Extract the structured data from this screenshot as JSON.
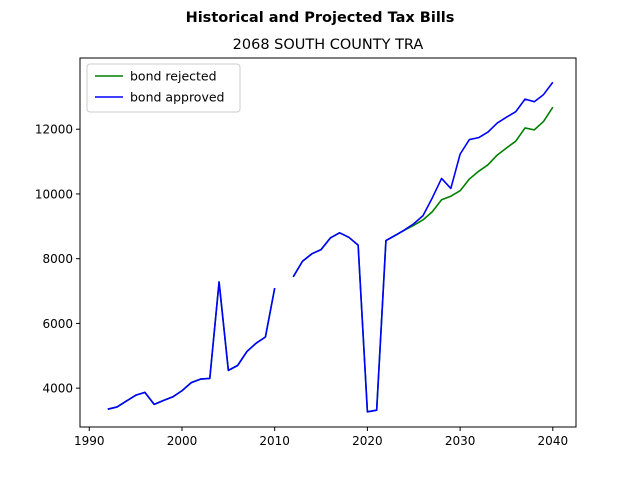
{
  "chart_data": {
    "type": "line",
    "suptitle": "Historical and Projected Tax Bills",
    "title": "2068 SOUTH COUNTY TRA",
    "xlabel": "",
    "ylabel": "",
    "xlim": [
      1989,
      2042.5
    ],
    "ylim": [
      2800,
      14200
    ],
    "xticks": [
      1990,
      2000,
      2010,
      2020,
      2030,
      2040
    ],
    "yticks": [
      4000,
      6000,
      8000,
      10000,
      12000
    ],
    "grid": false,
    "legend_position": "upper-left",
    "series": [
      {
        "name": "bond rejected",
        "color": "#008000",
        "points": [
          [
            1992,
            3350
          ],
          [
            1993,
            3420
          ],
          [
            1994,
            3600
          ],
          [
            1995,
            3780
          ],
          [
            1996,
            3870
          ],
          [
            1997,
            3500
          ],
          [
            1998,
            3620
          ],
          [
            1999,
            3730
          ],
          [
            2000,
            3920
          ],
          [
            2001,
            4170
          ],
          [
            2002,
            4280
          ],
          [
            2003,
            4300
          ],
          [
            2004,
            7280
          ],
          [
            2005,
            4550
          ],
          [
            2006,
            4700
          ],
          [
            2007,
            5130
          ],
          [
            2008,
            5390
          ],
          [
            2009,
            5580
          ],
          [
            2010,
            7090
          ],
          [
            2011,
            null
          ],
          [
            2012,
            7440
          ],
          [
            2013,
            7920
          ],
          [
            2014,
            8150
          ],
          [
            2015,
            8280
          ],
          [
            2016,
            8640
          ],
          [
            2017,
            8800
          ],
          [
            2018,
            8660
          ],
          [
            2019,
            8420
          ],
          [
            2020,
            3270
          ],
          [
            2021,
            3320
          ],
          [
            2022,
            8560
          ],
          [
            2023,
            8720
          ],
          [
            2024,
            8880
          ],
          [
            2025,
            9030
          ],
          [
            2026,
            9200
          ],
          [
            2027,
            9450
          ],
          [
            2028,
            9820
          ],
          [
            2029,
            9930
          ],
          [
            2030,
            10100
          ],
          [
            2031,
            10460
          ],
          [
            2032,
            10700
          ],
          [
            2033,
            10900
          ],
          [
            2034,
            11200
          ],
          [
            2035,
            11420
          ],
          [
            2036,
            11630
          ],
          [
            2037,
            12040
          ],
          [
            2038,
            11980
          ],
          [
            2039,
            12240
          ],
          [
            2040,
            12680
          ]
        ]
      },
      {
        "name": "bond approved",
        "color": "#0000ff",
        "points": [
          [
            1992,
            3350
          ],
          [
            1993,
            3420
          ],
          [
            1994,
            3600
          ],
          [
            1995,
            3780
          ],
          [
            1996,
            3870
          ],
          [
            1997,
            3500
          ],
          [
            1998,
            3620
          ],
          [
            1999,
            3730
          ],
          [
            2000,
            3920
          ],
          [
            2001,
            4170
          ],
          [
            2002,
            4280
          ],
          [
            2003,
            4300
          ],
          [
            2004,
            7280
          ],
          [
            2005,
            4550
          ],
          [
            2006,
            4700
          ],
          [
            2007,
            5130
          ],
          [
            2008,
            5390
          ],
          [
            2009,
            5580
          ],
          [
            2010,
            7090
          ],
          [
            2011,
            null
          ],
          [
            2012,
            7440
          ],
          [
            2013,
            7920
          ],
          [
            2014,
            8150
          ],
          [
            2015,
            8280
          ],
          [
            2016,
            8640
          ],
          [
            2017,
            8800
          ],
          [
            2018,
            8660
          ],
          [
            2019,
            8420
          ],
          [
            2020,
            3270
          ],
          [
            2021,
            3320
          ],
          [
            2022,
            8560
          ],
          [
            2023,
            8720
          ],
          [
            2024,
            8890
          ],
          [
            2025,
            9080
          ],
          [
            2026,
            9330
          ],
          [
            2027,
            9880
          ],
          [
            2028,
            10480
          ],
          [
            2029,
            10170
          ],
          [
            2030,
            11230
          ],
          [
            2031,
            11680
          ],
          [
            2032,
            11740
          ],
          [
            2033,
            11910
          ],
          [
            2034,
            12190
          ],
          [
            2035,
            12370
          ],
          [
            2036,
            12540
          ],
          [
            2037,
            12930
          ],
          [
            2038,
            12850
          ],
          [
            2039,
            13070
          ],
          [
            2040,
            13450
          ]
        ]
      }
    ]
  }
}
